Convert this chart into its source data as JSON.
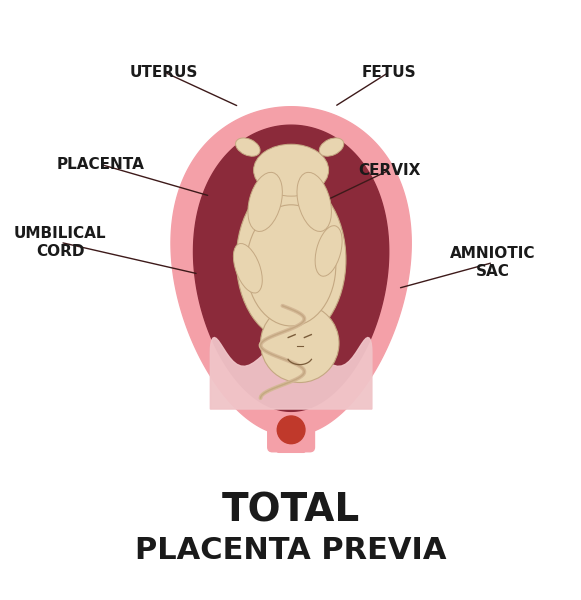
{
  "title_line1": "TOTAL",
  "title_line2": "PLACENTA PREVIA",
  "title_fontsize": 28,
  "subtitle_fontsize": 22,
  "label_fontsize": 11,
  "bg_color": "#ffffff",
  "uterus_outer_color": "#f4a0a8",
  "uterus_inner_color": "#8b2a3a",
  "fetus_skin_color": "#e8d5b0",
  "placenta_color": "#f0c4c8",
  "cervix_red_color": "#c0392b",
  "line_color": "#3d1a1a",
  "text_color": "#1a1a1a",
  "fetus_line_color": "#c4a882",
  "cord_color": "#d4b896",
  "annotations": [
    {
      "label": "UTERUS",
      "lxy": [
        0.28,
        0.895
      ],
      "txy": [
        0.41,
        0.835
      ]
    },
    {
      "label": "FETUS",
      "lxy": [
        0.67,
        0.895
      ],
      "txy": [
        0.575,
        0.835
      ]
    },
    {
      "label": "UMBILICAL\nCORD",
      "lxy": [
        0.1,
        0.6
      ],
      "txy": [
        0.34,
        0.545
      ]
    },
    {
      "label": "AMNIOTIC\nSAC",
      "lxy": [
        0.85,
        0.565
      ],
      "txy": [
        0.685,
        0.52
      ]
    },
    {
      "label": "PLACENTA",
      "lxy": [
        0.17,
        0.735
      ],
      "txy": [
        0.36,
        0.68
      ]
    },
    {
      "label": "CERVIX",
      "lxy": [
        0.67,
        0.725
      ],
      "txy": [
        0.555,
        0.67
      ]
    }
  ]
}
